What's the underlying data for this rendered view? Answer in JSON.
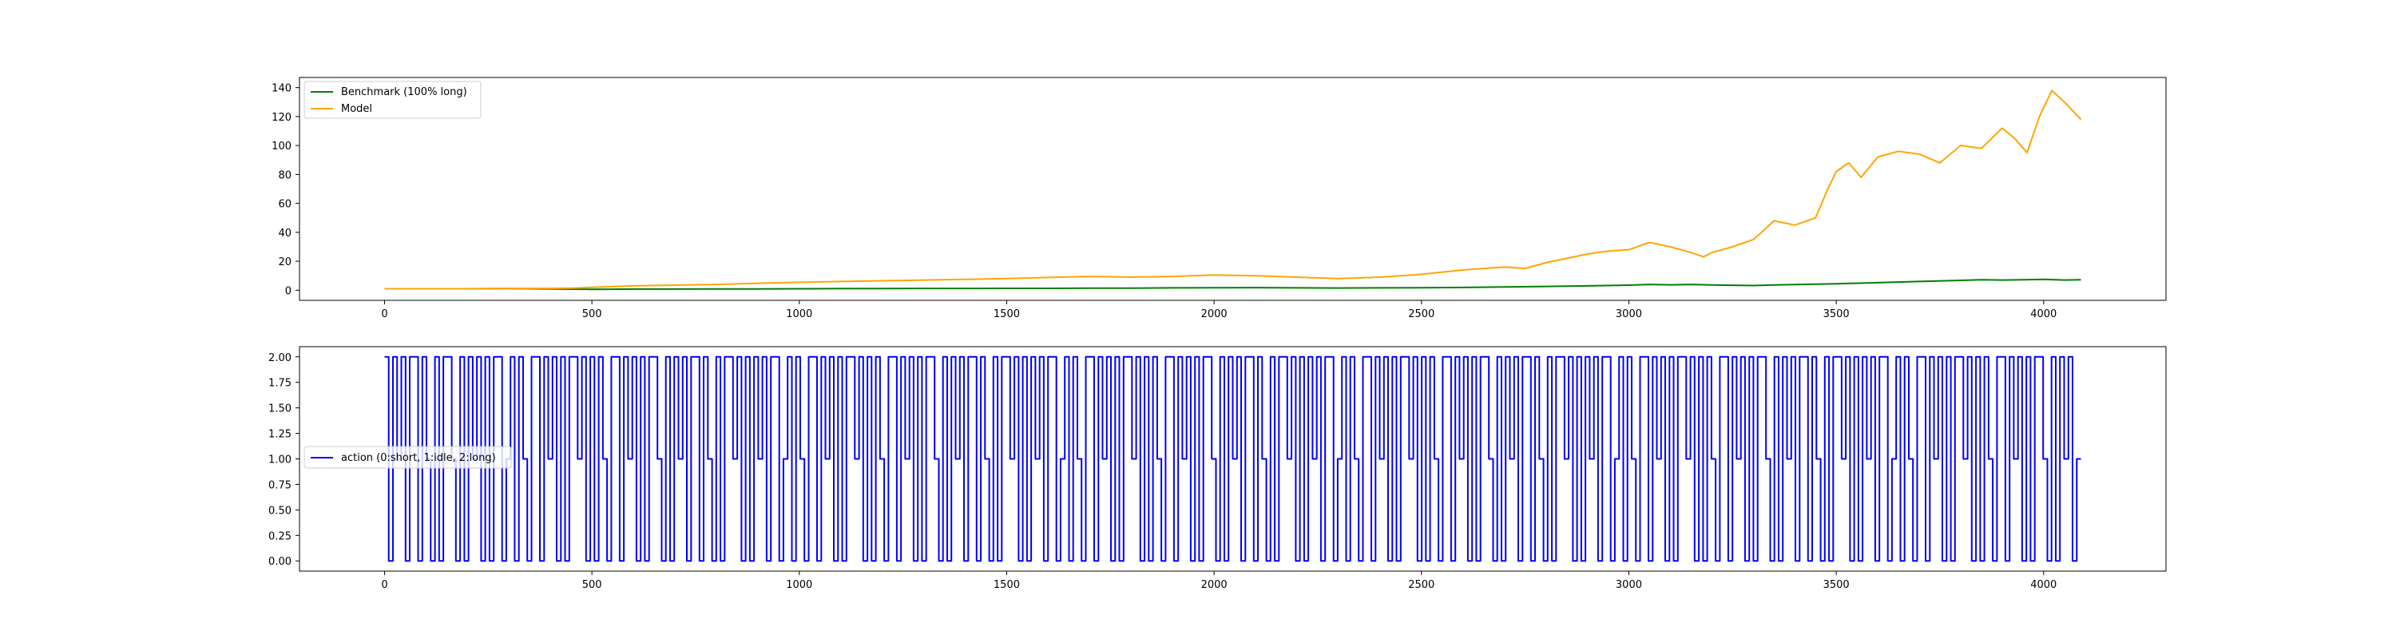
{
  "chart_data": [
    {
      "type": "line",
      "legend": "top-left",
      "grid": false,
      "xlim": [
        -205,
        4295
      ],
      "ylim": [
        -7,
        147
      ],
      "x_ticks": [
        "0",
        "500",
        "1000",
        "1500",
        "2000",
        "2500",
        "3000",
        "3500",
        "4000"
      ],
      "y_ticks": [
        "0",
        "20",
        "40",
        "60",
        "80",
        "100",
        "120",
        "140"
      ],
      "series": [
        {
          "name": "Benchmark (100% long)",
          "color": "#008000",
          "x": [
            0,
            100,
            200,
            300,
            400,
            500,
            600,
            700,
            800,
            900,
            1000,
            1100,
            1200,
            1300,
            1400,
            1500,
            1600,
            1700,
            1800,
            1900,
            2000,
            2100,
            2200,
            2300,
            2400,
            2500,
            2600,
            2700,
            2800,
            2900,
            3000,
            3050,
            3100,
            3150,
            3200,
            3300,
            3350,
            3400,
            3500,
            3600,
            3700,
            3800,
            3850,
            3900,
            3950,
            4000,
            4050,
            4090
          ],
          "values": [
            1.0,
            1.0,
            1.0,
            1.1,
            0.9,
            0.6,
            0.8,
            0.8,
            0.9,
            0.9,
            1.0,
            1.1,
            1.1,
            1.2,
            1.2,
            1.3,
            1.3,
            1.4,
            1.4,
            1.6,
            1.7,
            1.8,
            1.6,
            1.5,
            1.6,
            1.7,
            1.9,
            2.2,
            2.6,
            3.0,
            3.5,
            4.0,
            3.7,
            4.0,
            3.6,
            3.2,
            3.6,
            3.9,
            4.5,
            5.2,
            6.0,
            6.8,
            7.2,
            7.0,
            7.2,
            7.5,
            7.0,
            7.2
          ]
        },
        {
          "name": "Model",
          "color": "#ffa500",
          "x": [
            0,
            100,
            200,
            300,
            400,
            450,
            500,
            550,
            600,
            700,
            800,
            900,
            1000,
            1100,
            1200,
            1300,
            1400,
            1500,
            1600,
            1700,
            1800,
            1900,
            2000,
            2100,
            2200,
            2300,
            2400,
            2500,
            2600,
            2700,
            2750,
            2800,
            2850,
            2900,
            2950,
            3000,
            3050,
            3100,
            3150,
            3180,
            3200,
            3250,
            3300,
            3320,
            3350,
            3400,
            3450,
            3480,
            3500,
            3530,
            3560,
            3600,
            3650,
            3700,
            3750,
            3800,
            3850,
            3900,
            3930,
            3960,
            3990,
            4020,
            4050,
            4070,
            4090
          ],
          "values": [
            1.0,
            1.0,
            1.0,
            1.2,
            1.3,
            1.4,
            2.0,
            2.5,
            3.0,
            3.5,
            4.0,
            4.8,
            5.5,
            6.0,
            6.5,
            7.0,
            7.5,
            8.0,
            8.8,
            9.5,
            9.0,
            9.5,
            10.5,
            10.0,
            9.0,
            8.0,
            9.0,
            11.0,
            14.0,
            16.0,
            15.0,
            19.0,
            22.0,
            25.0,
            27.0,
            28.0,
            33.0,
            30.0,
            26.0,
            23.0,
            26.0,
            30.0,
            35.0,
            40.0,
            48.0,
            45.0,
            50.0,
            70.0,
            82.0,
            88.0,
            78.0,
            92.0,
            96.0,
            94.0,
            88.0,
            100.0,
            98.0,
            112.0,
            105.0,
            95.0,
            120.0,
            138.0,
            130.0,
            124.0,
            118.0
          ]
        }
      ]
    },
    {
      "type": "line",
      "legend": "center-left",
      "grid": false,
      "xlim": [
        -205,
        4295
      ],
      "ylim": [
        -0.1,
        2.1
      ],
      "x_ticks": [
        "0",
        "500",
        "1000",
        "1500",
        "2000",
        "2500",
        "3000",
        "3500",
        "4000"
      ],
      "y_ticks": [
        "0.00",
        "0.25",
        "0.50",
        "0.75",
        "1.00",
        "1.25",
        "1.50",
        "1.75",
        "2.00"
      ],
      "series": [
        {
          "name": "action (0:short, 1:idle, 2:long)",
          "color": "#0000ff",
          "step": true,
          "x_start": 0,
          "x_end": 4090,
          "values": [
            2,
            0,
            2,
            1,
            2,
            0,
            2,
            2,
            0,
            2,
            1,
            0,
            2,
            0,
            2,
            2,
            1,
            0,
            2,
            0,
            2,
            1,
            2,
            0,
            2,
            0,
            2,
            2,
            0,
            1,
            2,
            0,
            2,
            1,
            0,
            2,
            2,
            0,
            2,
            1,
            2,
            0,
            2,
            0,
            2,
            2,
            1,
            2,
            0,
            2,
            0,
            2,
            1,
            0,
            2,
            2,
            0,
            2,
            1,
            2,
            0,
            2,
            0,
            2,
            2,
            1,
            0,
            2,
            0,
            2,
            1,
            2,
            0,
            2,
            2,
            0,
            2,
            1,
            0,
            2,
            0,
            2,
            2,
            1,
            2,
            0,
            2,
            0,
            2,
            1,
            2,
            0,
            2,
            2,
            0,
            1,
            2,
            0,
            2,
            1,
            0,
            2,
            2,
            0,
            2,
            1,
            2,
            0,
            2,
            0,
            2,
            2,
            1,
            2,
            0,
            2,
            0,
            2,
            1,
            0,
            2,
            2,
            0,
            2,
            1,
            2,
            0,
            2,
            0,
            2,
            2,
            1,
            0,
            2,
            0,
            2,
            1,
            2,
            0,
            2,
            2,
            0,
            2,
            1,
            0,
            2,
            0,
            2,
            2,
            1,
            2,
            0,
            2,
            0,
            2,
            1,
            2,
            0,
            2,
            2,
            0,
            1,
            2,
            0,
            2,
            1,
            0,
            2,
            2,
            0,
            2,
            1,
            2,
            0,
            2,
            0,
            2,
            2,
            1,
            2,
            0,
            2,
            0,
            2,
            1,
            0,
            2,
            2,
            0,
            2,
            1,
            2,
            0,
            2,
            0,
            2,
            2,
            1,
            0,
            2,
            0,
            2,
            1,
            2,
            0,
            2,
            2,
            0,
            2,
            1,
            0,
            2,
            0,
            2,
            2,
            1,
            2,
            0,
            2,
            0,
            2,
            1,
            2,
            0,
            2,
            2,
            0,
            1,
            2,
            0,
            2,
            1,
            0,
            2,
            2,
            0,
            2,
            1,
            2,
            0,
            2,
            0,
            2,
            2,
            1,
            2,
            0,
            2,
            0,
            2,
            1,
            0,
            2,
            2,
            0,
            2,
            1,
            2,
            0,
            2,
            0,
            2,
            2,
            1,
            0,
            2,
            0,
            2,
            1,
            2,
            0,
            2,
            2,
            0,
            2,
            1,
            0,
            2,
            0,
            2,
            2,
            1,
            2,
            0,
            2,
            0,
            2,
            1,
            2,
            0,
            2,
            2,
            0,
            1,
            2,
            0,
            2,
            1,
            0,
            2,
            2,
            0,
            2,
            1,
            2,
            0,
            2,
            0,
            2,
            2,
            1,
            2,
            0,
            2,
            0,
            2,
            1,
            0,
            2,
            2,
            0,
            2,
            1,
            2,
            0,
            2,
            0,
            2,
            2,
            1,
            0,
            2,
            0,
            2,
            1,
            2,
            0,
            2,
            2,
            0,
            2,
            1,
            0,
            2,
            0,
            2,
            2,
            1,
            2,
            0,
            2,
            0,
            2,
            1,
            2,
            0,
            2,
            2,
            0,
            1,
            2,
            0,
            2,
            1,
            0,
            2,
            2,
            0,
            2,
            1,
            2,
            0,
            2,
            0,
            2,
            2,
            1,
            2,
            0,
            2,
            0,
            2,
            1,
            0,
            2,
            2,
            0,
            2,
            1,
            2,
            0,
            2,
            0,
            2,
            2,
            1,
            0,
            2,
            0,
            2,
            1,
            2,
            0,
            1
          ]
        }
      ]
    }
  ]
}
